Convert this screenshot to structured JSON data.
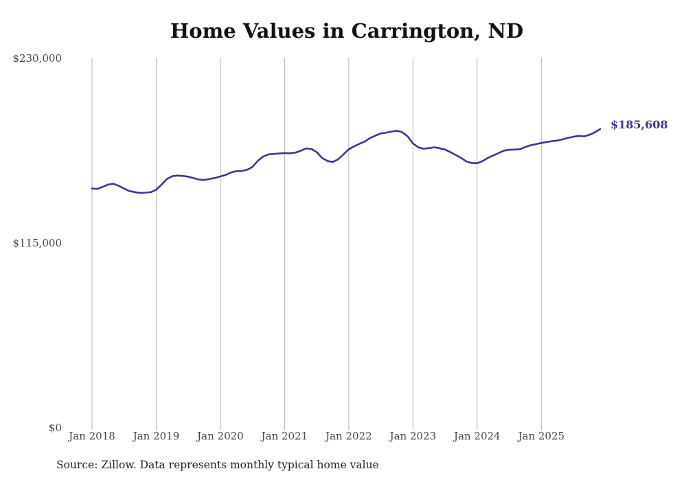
{
  "chart_data": {
    "type": "line",
    "title": "Home Values in Carrington, ND",
    "xlabel": "",
    "ylabel": "",
    "ylim": [
      0,
      230000
    ],
    "y_ticks": [
      {
        "value": 0,
        "label": "$0"
      },
      {
        "value": 115000,
        "label": "$115,000"
      },
      {
        "value": 230000,
        "label": "$230,000"
      }
    ],
    "x_ticks": [
      {
        "value": 2018.0,
        "label": "Jan 2018"
      },
      {
        "value": 2019.0,
        "label": "Jan 2019"
      },
      {
        "value": 2020.0,
        "label": "Jan 2020"
      },
      {
        "value": 2021.0,
        "label": "Jan 2021"
      },
      {
        "value": 2022.0,
        "label": "Jan 2022"
      },
      {
        "value": 2023.0,
        "label": "Jan 2023"
      },
      {
        "value": 2024.0,
        "label": "Jan 2024"
      },
      {
        "value": 2025.0,
        "label": "Jan 2025"
      }
    ],
    "xlim": [
      2018.0,
      2025.917
    ],
    "grid": "vertical",
    "line_color": "#3b3593",
    "series": [
      {
        "name": "Typical home value",
        "points": [
          [
            2018.0,
            148600
          ],
          [
            2018.083,
            148300
          ],
          [
            2018.167,
            149600
          ],
          [
            2018.25,
            151000
          ],
          [
            2018.333,
            151500
          ],
          [
            2018.417,
            150200
          ],
          [
            2018.5,
            148500
          ],
          [
            2018.583,
            147000
          ],
          [
            2018.667,
            146300
          ],
          [
            2018.75,
            145800
          ],
          [
            2018.833,
            146000
          ],
          [
            2018.917,
            146300
          ],
          [
            2019.0,
            147800
          ],
          [
            2019.083,
            151000
          ],
          [
            2019.167,
            154500
          ],
          [
            2019.25,
            156200
          ],
          [
            2019.333,
            156600
          ],
          [
            2019.417,
            156400
          ],
          [
            2019.5,
            155900
          ],
          [
            2019.583,
            155000
          ],
          [
            2019.667,
            154100
          ],
          [
            2019.75,
            153900
          ],
          [
            2019.833,
            154500
          ],
          [
            2019.917,
            155100
          ],
          [
            2020.0,
            156100
          ],
          [
            2020.083,
            157000
          ],
          [
            2020.167,
            158600
          ],
          [
            2020.25,
            159300
          ],
          [
            2020.333,
            159500
          ],
          [
            2020.417,
            160200
          ],
          [
            2020.5,
            162000
          ],
          [
            2020.583,
            165800
          ],
          [
            2020.667,
            168500
          ],
          [
            2020.75,
            169800
          ],
          [
            2020.833,
            170100
          ],
          [
            2020.917,
            170400
          ],
          [
            2021.0,
            170600
          ],
          [
            2021.083,
            170500
          ],
          [
            2021.167,
            170900
          ],
          [
            2021.25,
            172000
          ],
          [
            2021.333,
            173500
          ],
          [
            2021.417,
            173200
          ],
          [
            2021.5,
            171200
          ],
          [
            2021.583,
            167600
          ],
          [
            2021.667,
            165700
          ],
          [
            2021.75,
            165100
          ],
          [
            2021.833,
            166700
          ],
          [
            2021.917,
            169800
          ],
          [
            2022.0,
            173000
          ],
          [
            2022.083,
            174800
          ],
          [
            2022.167,
            176400
          ],
          [
            2022.25,
            177800
          ],
          [
            2022.333,
            180000
          ],
          [
            2022.417,
            181500
          ],
          [
            2022.5,
            182900
          ],
          [
            2022.583,
            183300
          ],
          [
            2022.667,
            184000
          ],
          [
            2022.75,
            184500
          ],
          [
            2022.833,
            183600
          ],
          [
            2022.917,
            181000
          ],
          [
            2023.0,
            176600
          ],
          [
            2023.083,
            174200
          ],
          [
            2023.167,
            173300
          ],
          [
            2023.25,
            173700
          ],
          [
            2023.333,
            174200
          ],
          [
            2023.417,
            173600
          ],
          [
            2023.5,
            172800
          ],
          [
            2023.583,
            171200
          ],
          [
            2023.667,
            169400
          ],
          [
            2023.75,
            167600
          ],
          [
            2023.833,
            165400
          ],
          [
            2023.917,
            164400
          ],
          [
            2024.0,
            164300
          ],
          [
            2024.083,
            165600
          ],
          [
            2024.167,
            167600
          ],
          [
            2024.25,
            169100
          ],
          [
            2024.333,
            170600
          ],
          [
            2024.417,
            172100
          ],
          [
            2024.5,
            172700
          ],
          [
            2024.583,
            172800
          ],
          [
            2024.667,
            173000
          ],
          [
            2024.75,
            174400
          ],
          [
            2024.833,
            175500
          ],
          [
            2024.917,
            176200
          ],
          [
            2025.0,
            176900
          ],
          [
            2025.083,
            177500
          ],
          [
            2025.167,
            178000
          ],
          [
            2025.25,
            178400
          ],
          [
            2025.333,
            179200
          ],
          [
            2025.417,
            180100
          ],
          [
            2025.5,
            180800
          ],
          [
            2025.583,
            181300
          ],
          [
            2025.667,
            181000
          ],
          [
            2025.75,
            182000
          ],
          [
            2025.833,
            183500
          ],
          [
            2025.917,
            185608
          ]
        ]
      }
    ],
    "annotations": [
      {
        "text": "$185,608",
        "anchor": "last-point"
      }
    ],
    "source": "Source: Zillow. Data represents monthly typical home value"
  }
}
